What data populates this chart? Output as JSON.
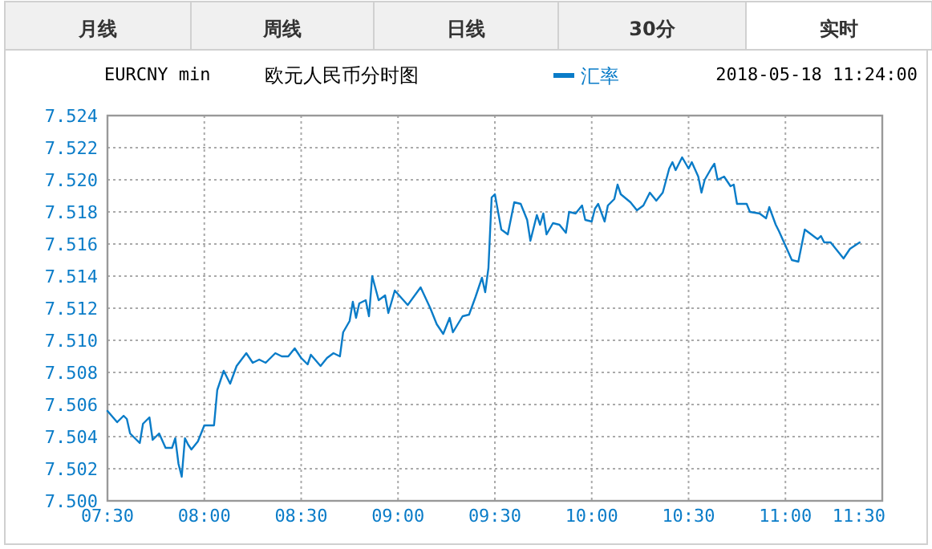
{
  "chart_data": {
    "type": "line",
    "title": "欧元人民币分时图",
    "subtitle": "EURCNY min",
    "annotations": [
      "月线",
      "周线",
      "日线",
      "30分",
      "实时",
      "2018-05-18 11:24:00"
    ],
    "legend": "top",
    "grid": true,
    "marker": "none",
    "line_style": "solid",
    "xlim": [
      "2018-05-18T07:30",
      "2018-05-18T11:30"
    ],
    "xticks": [
      {
        "value": "2018-05-18T07:30",
        "label": "07:30"
      },
      {
        "value": "2018-05-18T08:00",
        "label": "08:00"
      },
      {
        "value": "2018-05-18T08:30",
        "label": "08:30"
      },
      {
        "value": "2018-05-18T09:00",
        "label": "09:00"
      },
      {
        "value": "2018-05-18T09:30",
        "label": "09:30"
      },
      {
        "value": "2018-05-18T10:00",
        "label": "10:00"
      },
      {
        "value": "2018-05-18T10:30",
        "label": "10:30"
      },
      {
        "value": "2018-05-18T11:00",
        "label": "11:00"
      },
      {
        "value": "2018-05-18T11:30",
        "label": "11:30"
      }
    ],
    "ylim": [
      7.5,
      7.524
    ],
    "yticks": [
      {
        "value": 7.5,
        "label": "7.500"
      },
      {
        "value": 7.502,
        "label": "7.502"
      },
      {
        "value": 7.504,
        "label": "7.504"
      },
      {
        "value": 7.506,
        "label": "7.506"
      },
      {
        "value": 7.508,
        "label": "7.508"
      },
      {
        "value": 7.51,
        "label": "7.510"
      },
      {
        "value": 7.512,
        "label": "7.512"
      },
      {
        "value": 7.514,
        "label": "7.514"
      },
      {
        "value": 7.516,
        "label": "7.516"
      },
      {
        "value": 7.518,
        "label": "7.518"
      },
      {
        "value": 7.52,
        "label": "7.520"
      },
      {
        "value": 7.522,
        "label": "7.522"
      },
      {
        "value": 7.524,
        "label": "7.524"
      }
    ],
    "x": [
      "2018-05-18T07:30",
      "2018-05-18T07:33",
      "2018-05-18T07:35",
      "2018-05-18T07:36",
      "2018-05-18T07:37",
      "2018-05-18T07:40",
      "2018-05-18T07:41",
      "2018-05-18T07:43",
      "2018-05-18T07:44",
      "2018-05-18T07:46",
      "2018-05-18T07:48",
      "2018-05-18T07:50",
      "2018-05-18T07:51",
      "2018-05-18T07:52",
      "2018-05-18T07:53",
      "2018-05-18T07:54",
      "2018-05-18T07:55",
      "2018-05-18T07:56",
      "2018-05-18T07:58",
      "2018-05-18T08:00",
      "2018-05-18T08:03",
      "2018-05-18T08:04",
      "2018-05-18T08:06",
      "2018-05-18T08:08",
      "2018-05-18T08:10",
      "2018-05-18T08:13",
      "2018-05-18T08:15",
      "2018-05-18T08:17",
      "2018-05-18T08:19",
      "2018-05-18T08:22",
      "2018-05-18T08:24",
      "2018-05-18T08:26",
      "2018-05-18T08:28",
      "2018-05-18T08:30",
      "2018-05-18T08:32",
      "2018-05-18T08:33",
      "2018-05-18T08:36",
      "2018-05-18T08:38",
      "2018-05-18T08:40",
      "2018-05-18T08:42",
      "2018-05-18T08:43",
      "2018-05-18T08:45",
      "2018-05-18T08:46",
      "2018-05-18T08:47",
      "2018-05-18T08:48",
      "2018-05-18T08:50",
      "2018-05-18T08:51",
      "2018-05-18T08:52",
      "2018-05-18T08:54",
      "2018-05-18T08:56",
      "2018-05-18T08:57",
      "2018-05-18T08:59",
      "2018-05-18T09:03",
      "2018-05-18T09:07",
      "2018-05-18T09:10",
      "2018-05-18T09:12",
      "2018-05-18T09:14",
      "2018-05-18T09:16",
      "2018-05-18T09:17",
      "2018-05-18T09:20",
      "2018-05-18T09:22",
      "2018-05-18T09:24",
      "2018-05-18T09:26",
      "2018-05-18T09:27",
      "2018-05-18T09:28",
      "2018-05-18T09:29",
      "2018-05-18T09:30",
      "2018-05-18T09:32",
      "2018-05-18T09:34",
      "2018-05-18T09:36",
      "2018-05-18T09:38",
      "2018-05-18T09:40",
      "2018-05-18T09:41",
      "2018-05-18T09:43",
      "2018-05-18T09:44",
      "2018-05-18T09:45",
      "2018-05-18T09:46",
      "2018-05-18T09:48",
      "2018-05-18T09:50",
      "2018-05-18T09:52",
      "2018-05-18T09:53",
      "2018-05-18T09:55",
      "2018-05-18T09:57",
      "2018-05-18T09:58",
      "2018-05-18T10:00",
      "2018-05-18T10:01",
      "2018-05-18T10:02",
      "2018-05-18T10:04",
      "2018-05-18T10:05",
      "2018-05-18T10:07",
      "2018-05-18T10:08",
      "2018-05-18T10:09",
      "2018-05-18T10:12",
      "2018-05-18T10:14",
      "2018-05-18T10:16",
      "2018-05-18T10:18",
      "2018-05-18T10:20",
      "2018-05-18T10:22",
      "2018-05-18T10:24",
      "2018-05-18T10:25",
      "2018-05-18T10:26",
      "2018-05-18T10:28",
      "2018-05-18T10:30",
      "2018-05-18T10:31",
      "2018-05-18T10:33",
      "2018-05-18T10:34",
      "2018-05-18T10:35",
      "2018-05-18T10:37",
      "2018-05-18T10:38",
      "2018-05-18T10:39",
      "2018-05-18T10:41",
      "2018-05-18T10:43",
      "2018-05-18T10:44",
      "2018-05-18T10:45",
      "2018-05-18T10:48",
      "2018-05-18T10:49",
      "2018-05-18T10:52",
      "2018-05-18T10:54",
      "2018-05-18T10:55",
      "2018-05-18T10:57",
      "2018-05-18T10:58",
      "2018-05-18T11:00",
      "2018-05-18T11:02",
      "2018-05-18T11:04",
      "2018-05-18T11:06",
      "2018-05-18T11:08",
      "2018-05-18T11:10",
      "2018-05-18T11:11",
      "2018-05-18T11:12",
      "2018-05-18T11:14",
      "2018-05-18T11:18",
      "2018-05-18T11:20",
      "2018-05-18T11:23"
    ],
    "series": [
      {
        "name": "汇率",
        "color": "#0a7cc8",
        "values": [
          7.5056,
          7.5049,
          7.5053,
          7.5051,
          7.5042,
          7.5036,
          7.5048,
          7.5052,
          7.5038,
          7.5042,
          7.5033,
          7.5033,
          7.5039,
          7.5023,
          7.5015,
          7.5039,
          7.5035,
          7.5032,
          7.5037,
          7.5047,
          7.5047,
          7.5069,
          7.5081,
          7.5073,
          7.5084,
          7.5092,
          7.5086,
          7.5088,
          7.5086,
          7.5092,
          7.509,
          7.509,
          7.5095,
          7.5089,
          7.5085,
          7.5091,
          7.5084,
          7.5089,
          7.5092,
          7.509,
          7.5105,
          7.5112,
          7.5124,
          7.5114,
          7.5123,
          7.5125,
          7.5115,
          7.514,
          7.5125,
          7.5128,
          7.5117,
          7.5131,
          7.5122,
          7.5133,
          7.512,
          7.511,
          7.5104,
          7.5114,
          7.5105,
          7.5115,
          7.5116,
          7.5127,
          7.5139,
          7.513,
          7.5145,
          7.5189,
          7.5191,
          7.5169,
          7.5166,
          7.5186,
          7.5185,
          7.5175,
          7.5162,
          7.5178,
          7.5172,
          7.5179,
          7.5166,
          7.5173,
          7.5172,
          7.5167,
          7.518,
          7.5179,
          7.5184,
          7.5175,
          7.5174,
          7.5182,
          7.5185,
          7.5174,
          7.5184,
          7.5188,
          7.5197,
          7.5191,
          7.5186,
          7.5181,
          7.5184,
          7.5192,
          7.5187,
          7.5192,
          7.5207,
          7.5211,
          7.5206,
          7.5214,
          7.5207,
          7.5211,
          7.5202,
          7.5192,
          7.52,
          7.5207,
          7.521,
          7.52,
          7.5202,
          7.5196,
          7.5197,
          7.5185,
          7.5185,
          7.518,
          7.5179,
          7.5176,
          7.5183,
          7.5172,
          7.5168,
          7.5159,
          7.515,
          7.5149,
          7.5169,
          7.5166,
          7.5163,
          7.5165,
          7.5161,
          7.5161,
          7.5151,
          7.5157,
          7.5161
        ]
      }
    ]
  }
}
